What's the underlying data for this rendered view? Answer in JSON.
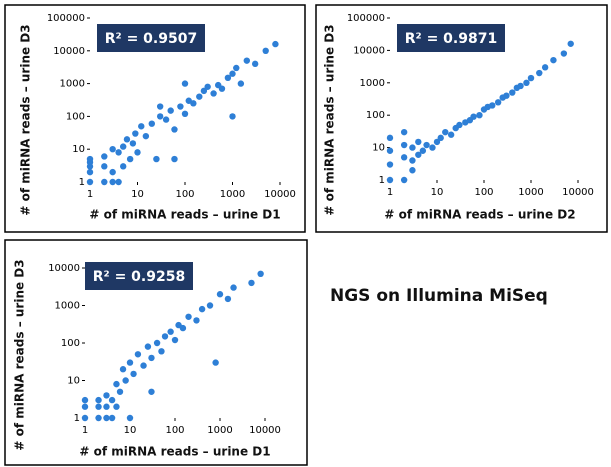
{
  "caption": "NGS on Illumina MiSeq",
  "chart_data": [
    {
      "type": "scatter",
      "annotation": "R² = 0.9507",
      "xlabel": "# of miRNA reads – urine D1",
      "ylabel": "# of miRNA reads – urine D3",
      "xscale": "log",
      "yscale": "log",
      "xlim": [
        1,
        10000
      ],
      "ylim": [
        1,
        100000
      ],
      "xticks": [
        1,
        10,
        100,
        1000,
        10000
      ],
      "yticks": [
        1,
        10,
        100,
        1000,
        10000,
        100000
      ],
      "series": [
        {
          "color": "#2e7fd6",
          "x": [
            1,
            1,
            1,
            1,
            1,
            2,
            2,
            2,
            3,
            3,
            3,
            4,
            4,
            5,
            5,
            6,
            7,
            8,
            9,
            10,
            12,
            15,
            20,
            25,
            30,
            40,
            50,
            60,
            80,
            100,
            120,
            150,
            200,
            250,
            300,
            400,
            500,
            600,
            800,
            1000,
            1200,
            1500,
            2000,
            3000,
            5000,
            8000,
            1000,
            100,
            60,
            30
          ],
          "values": [
            1,
            2,
            3,
            5,
            4,
            1,
            3,
            6,
            1,
            10,
            2,
            1,
            8,
            12,
            3,
            20,
            5,
            15,
            30,
            8,
            50,
            25,
            60,
            5,
            100,
            80,
            150,
            40,
            200,
            120,
            300,
            250,
            400,
            600,
            800,
            500,
            900,
            700,
            1500,
            2000,
            3000,
            1000,
            5000,
            4000,
            10000,
            16000,
            100,
            1000,
            5,
            200
          ]
        }
      ]
    },
    {
      "type": "scatter",
      "annotation": "R² = 0.9871",
      "xlabel": "# of miRNA reads – urine D2",
      "ylabel": "# of miRNA reads – urine D3",
      "xscale": "log",
      "yscale": "log",
      "xlim": [
        1,
        10000
      ],
      "ylim": [
        1,
        100000
      ],
      "xticks": [
        1,
        10,
        100,
        1000,
        10000
      ],
      "yticks": [
        1,
        10,
        100,
        1000,
        10000,
        100000
      ],
      "series": [
        {
          "color": "#2e7fd6",
          "x": [
            1,
            1,
            1,
            1,
            2,
            2,
            2,
            3,
            3,
            4,
            4,
            5,
            6,
            8,
            10,
            12,
            15,
            20,
            25,
            30,
            40,
            50,
            60,
            80,
            100,
            120,
            150,
            200,
            250,
            300,
            400,
            500,
            600,
            800,
            1000,
            1500,
            2000,
            3000,
            5000,
            7000,
            2,
            3
          ],
          "values": [
            1,
            3,
            8,
            20,
            1,
            5,
            12,
            2,
            10,
            6,
            15,
            8,
            12,
            10,
            15,
            20,
            30,
            25,
            40,
            50,
            60,
            70,
            90,
            100,
            150,
            180,
            200,
            250,
            350,
            400,
            500,
            700,
            800,
            1000,
            1400,
            2000,
            3000,
            5000,
            8000,
            16000,
            30,
            4
          ]
        }
      ]
    },
    {
      "type": "scatter",
      "annotation": "R² = 0.9258",
      "xlabel": "# of miRNA reads – urine D1",
      "ylabel": "# of miRNA reads – urine D3",
      "xscale": "log",
      "yscale": "log",
      "xlim": [
        1,
        10000
      ],
      "ylim": [
        1,
        10000
      ],
      "xticks": [
        1,
        10,
        100,
        1000,
        10000
      ],
      "yticks": [
        1,
        10,
        100,
        1000,
        10000
      ],
      "series": [
        {
          "color": "#2e7fd6",
          "x": [
            1,
            1,
            1,
            2,
            2,
            2,
            3,
            3,
            3,
            4,
            4,
            5,
            5,
            6,
            7,
            8,
            10,
            12,
            15,
            20,
            25,
            30,
            40,
            50,
            60,
            80,
            100,
            120,
            150,
            200,
            300,
            400,
            600,
            800,
            1000,
            1500,
            2000,
            5000,
            8000,
            30,
            10
          ],
          "values": [
            1,
            2,
            3,
            1,
            2,
            3,
            1,
            2,
            4,
            1,
            3,
            2,
            8,
            5,
            20,
            10,
            30,
            15,
            50,
            25,
            80,
            40,
            100,
            60,
            150,
            200,
            120,
            300,
            250,
            500,
            400,
            800,
            1000,
            30,
            2000,
            1500,
            3000,
            4000,
            7000,
            5,
            1
          ]
        }
      ]
    }
  ]
}
